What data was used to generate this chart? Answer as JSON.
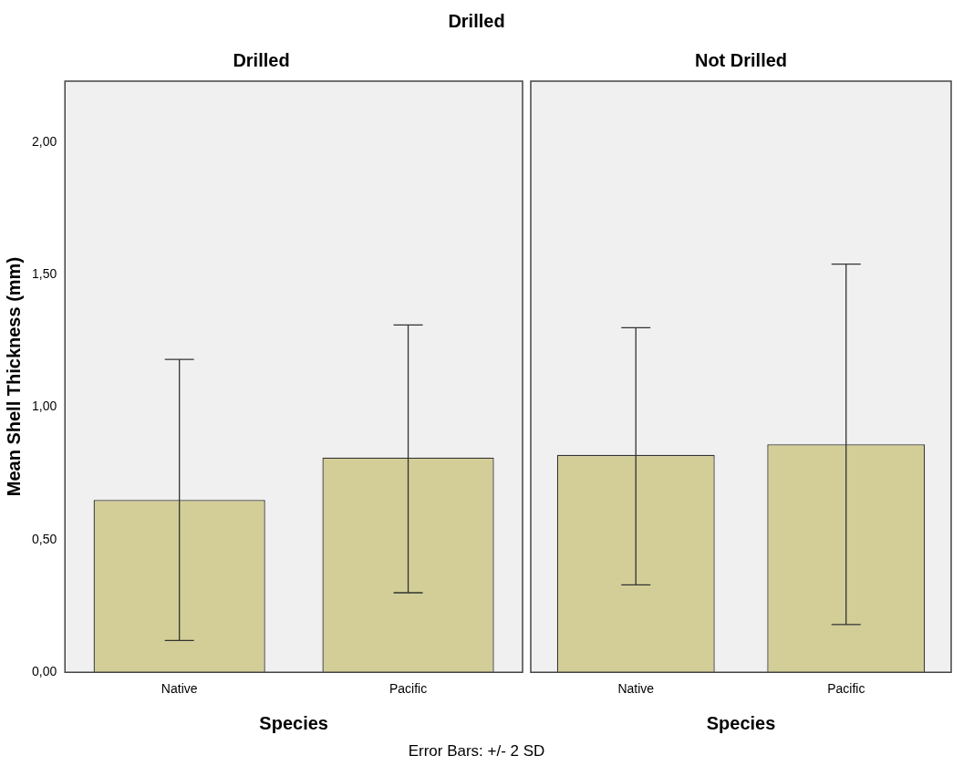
{
  "chart_data": [
    {
      "type": "bar",
      "title": "Drilled",
      "subtitle": "Drilled",
      "xlabel": "Species",
      "ylabel": "Mean Shell Thickness (mm)",
      "categories": [
        "Native",
        "Pacific"
      ],
      "values": [
        0.65,
        0.81
      ],
      "errors": [
        [
          0.12,
          1.18
        ],
        [
          0.3,
          1.31
        ]
      ],
      "color": "#d3ce97",
      "ylim": [
        0,
        2.23
      ],
      "yticks": [
        {
          "value": 0,
          "label": "0,00"
        },
        {
          "value": 0.5,
          "label": "0,50"
        },
        {
          "value": 1,
          "label": "1,00"
        },
        {
          "value": 1.5,
          "label": "1,50"
        },
        {
          "value": 2,
          "label": "2,00"
        }
      ],
      "grid": false,
      "legend": false,
      "annotations": [
        "Error Bars: +/- 2 SD"
      ]
    },
    {
      "type": "bar",
      "subtitle": "Not Drilled",
      "xlabel": "Species",
      "categories": [
        "Native",
        "Pacific"
      ],
      "values": [
        0.82,
        0.86
      ],
      "errors": [
        [
          0.33,
          1.3
        ],
        [
          0.18,
          1.54
        ]
      ],
      "color": "#d3ce97",
      "ylim": [
        0,
        2.23
      ],
      "grid": false,
      "legend": false,
      "tick_labels": "x"
    }
  ]
}
